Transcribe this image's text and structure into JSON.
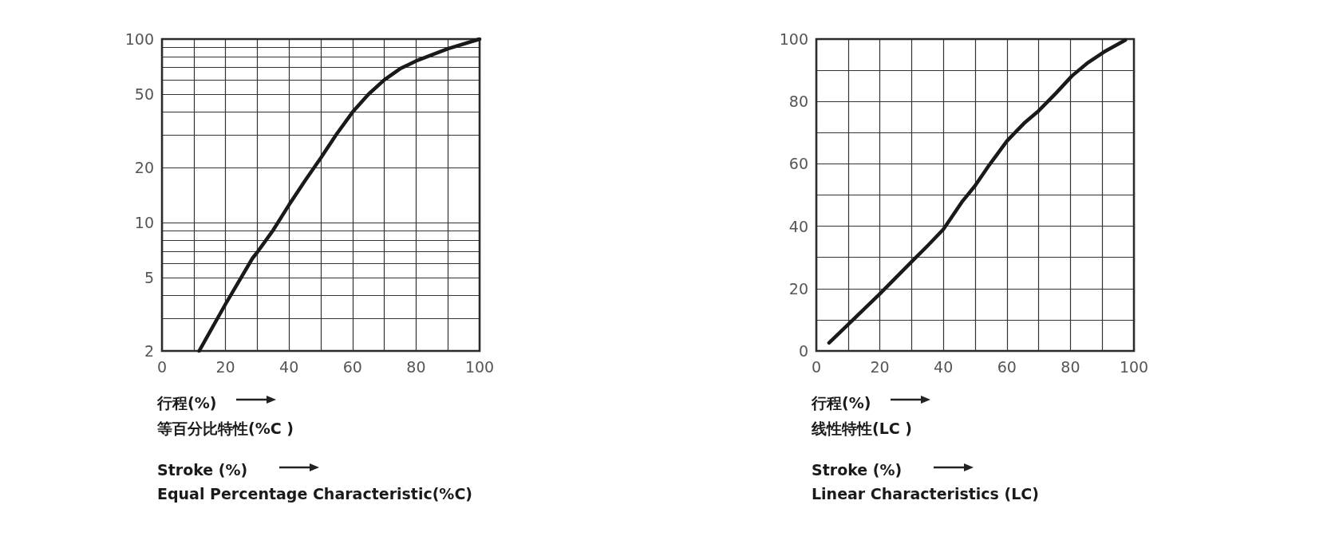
{
  "chart_data": [
    {
      "type": "line",
      "log": "y",
      "grid": true,
      "marker": "none",
      "line_style": "solid",
      "x": [
        11.7,
        20,
        28.5,
        30,
        35,
        40,
        45,
        50,
        55,
        60,
        65,
        70,
        75,
        80,
        90,
        100
      ],
      "series": [
        {
          "color": "#1a1a1a",
          "values": [
            2,
            3.6,
            6.4,
            6.9,
            9.1,
            12.5,
            16.9,
            22.5,
            30.4,
            40,
            50,
            60,
            69,
            76,
            88.6,
            100
          ]
        }
      ],
      "xlim": [
        0,
        100
      ],
      "ylim": [
        2,
        100
      ],
      "xticks": [
        0,
        {
          "value": 10,
          "label": null
        },
        20,
        {
          "value": 30,
          "label": null
        },
        40,
        {
          "value": 50,
          "label": null
        },
        60,
        {
          "value": 70,
          "label": null
        },
        80,
        {
          "value": 90,
          "label": null
        },
        100
      ],
      "yticks": [
        2,
        {
          "value": 3,
          "label": null
        },
        {
          "value": 4,
          "label": null
        },
        5,
        {
          "value": 6,
          "label": null
        },
        {
          "value": 7,
          "label": null
        },
        {
          "value": 8,
          "label": null
        },
        {
          "value": 9,
          "label": null
        },
        10,
        20,
        {
          "value": 30,
          "label": null
        },
        {
          "value": 40,
          "label": null
        },
        50,
        {
          "value": 60,
          "label": null
        },
        {
          "value": 70,
          "label": null
        },
        {
          "value": 80,
          "label": null
        },
        {
          "value": 90,
          "label": null
        },
        100
      ],
      "annotations": [
        "行程(%)",
        "等百分比特性(%C )",
        "Stroke (%)",
        "Equal Percentage Characteristic(%C)"
      ]
    },
    {
      "type": "line",
      "grid": true,
      "marker": "none",
      "line_style": "solid",
      "x": [
        4,
        10,
        20,
        30,
        35,
        40,
        46,
        50,
        54.5,
        60,
        65.4,
        70,
        75.5,
        80.5,
        85.6,
        90.6,
        97.3
      ],
      "series": [
        {
          "color": "#1a1a1a",
          "values": [
            2.6,
            8.5,
            18.3,
            28.6,
            33.7,
            39,
            48,
            53,
            59.7,
            67.3,
            73,
            77,
            82.7,
            88.2,
            92.5,
            95.9,
            99.7
          ]
        }
      ],
      "xlim": [
        0,
        100
      ],
      "ylim": [
        0,
        100
      ],
      "xticks": [
        0,
        {
          "value": 10,
          "label": null
        },
        20,
        {
          "value": 30,
          "label": null
        },
        40,
        {
          "value": 50,
          "label": null
        },
        60,
        {
          "value": 70,
          "label": null
        },
        80,
        {
          "value": 90,
          "label": null
        },
        100
      ],
      "yticks": [
        0,
        {
          "value": 10,
          "label": null
        },
        20,
        {
          "value": 30,
          "label": null
        },
        40,
        {
          "value": 50,
          "label": null
        },
        60,
        {
          "value": 70,
          "label": null
        },
        80,
        {
          "value": 90,
          "label": null
        },
        100
      ],
      "annotations": [
        "行程(%)",
        "线性特性(LC )",
        "Stroke (%)",
        "Linear Characteristics (LC)"
      ]
    }
  ]
}
